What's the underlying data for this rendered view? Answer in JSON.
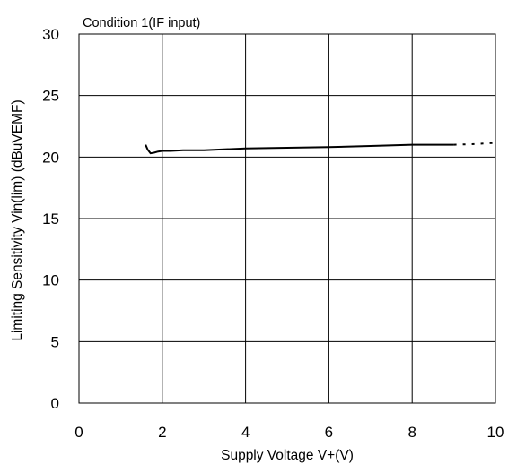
{
  "chart_data": {
    "type": "line",
    "title": "Condition 1(IF input)",
    "xlabel": "Supply Voltage V+(V)",
    "ylabel": "Limiting Sensitivity Vin(lim) (dBuVEMF)",
    "xlim": [
      0,
      10
    ],
    "ylim": [
      0,
      30
    ],
    "xticks": [
      0,
      2,
      4,
      6,
      8,
      10
    ],
    "yticks": [
      0,
      5,
      10,
      15,
      20,
      25,
      30
    ],
    "xtick_labels": [
      "0",
      "2",
      "4",
      "6",
      "8",
      "10"
    ],
    "ytick_labels": [
      "0",
      "5",
      "10",
      "15",
      "20",
      "25",
      "30"
    ],
    "grid": true,
    "legend": "none",
    "series": [
      {
        "style": "solid",
        "color": "#000000",
        "x": [
          1.6,
          1.65,
          1.72,
          1.8,
          1.9,
          2.0,
          2.2,
          2.5,
          3.0,
          4.0,
          5.0,
          6.0,
          7.0,
          8.0,
          9.0
        ],
        "y": [
          21.0,
          20.6,
          20.3,
          20.35,
          20.45,
          20.5,
          20.5,
          20.55,
          20.55,
          20.7,
          20.75,
          20.8,
          20.9,
          21.0,
          21.0
        ]
      },
      {
        "style": "dotted",
        "color": "#000000",
        "x": [
          9.0,
          9.5,
          10.0
        ],
        "y": [
          21.0,
          21.05,
          21.15
        ]
      }
    ]
  }
}
